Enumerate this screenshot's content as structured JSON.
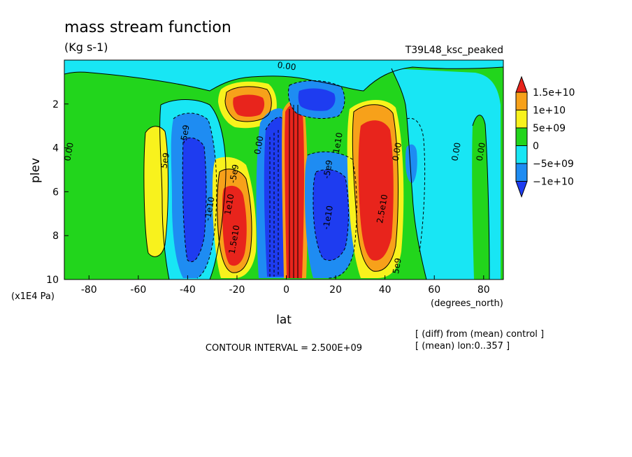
{
  "chart_data": {
    "type": "contour",
    "title": "mass stream function",
    "units": "(Kg s-1)",
    "run_label": "T39L48_ksc_peaked",
    "xlabel": "lat",
    "xunits": "(degrees_north)",
    "ylabel": "plev",
    "yunits": "(x1E4 Pa)",
    "xlim": [
      -90,
      88
    ],
    "ylim": [
      10,
      0
    ],
    "xticks": [
      "-80",
      "-60",
      "-40",
      "-20",
      "0",
      "20",
      "40",
      "60",
      "80"
    ],
    "xtick_values": [
      -80,
      -60,
      -40,
      -20,
      0,
      20,
      40,
      60,
      80
    ],
    "yticks": [
      "2",
      "4",
      "6",
      "8",
      "10"
    ],
    "ytick_values": [
      2,
      4,
      6,
      8,
      10
    ],
    "contour_interval": "CONTOUR INTERVAL = 2.500E+09",
    "notes": [
      "[ (diff) from (mean) control ]",
      "[ (mean) lon:0..357 ]"
    ],
    "legend": {
      "placement": "right",
      "levels": [
        {
          "label": "1.5e+10",
          "color": "#e8241c"
        },
        {
          "label": "1e+10",
          "color": "#f7a11a"
        },
        {
          "label": "5e+09",
          "color": "#f8f21d"
        },
        {
          "label": "0",
          "color": "#22d51c"
        },
        {
          "label": "−5e+09",
          "color": "#18e6f4"
        },
        {
          "label": "−1e+10",
          "color": "#1e8cf2"
        }
      ],
      "overflow_low_color": "#1e3cf0"
    },
    "contour_labels": [
      {
        "text": "0.00",
        "lat": 0,
        "plev": 0.4
      },
      {
        "text": "0.00",
        "lat": -87,
        "plev": 4.2
      },
      {
        "text": "0.00",
        "lat": 80,
        "plev": 4.2
      },
      {
        "text": "0.00",
        "lat": 70,
        "plev": 4.2
      },
      {
        "text": "0.00",
        "lat": 46,
        "plev": 4.2
      },
      {
        "text": "0.00",
        "lat": -10,
        "plev": 3.9
      },
      {
        "text": "5e9",
        "lat": -48,
        "plev": 4.6
      },
      {
        "text": "-5e9",
        "lat": -40,
        "plev": 3.4
      },
      {
        "text": "-5e9",
        "lat": -20,
        "plev": 5.2
      },
      {
        "text": "-5e9",
        "lat": 18,
        "plev": 5.0
      },
      {
        "text": "1e10",
        "lat": -22,
        "plev": 6.6
      },
      {
        "text": "1.5e10",
        "lat": -20,
        "plev": 8.2
      },
      {
        "text": "-1e10",
        "lat": -30,
        "plev": 6.8
      },
      {
        "text": "1e10",
        "lat": 22,
        "plev": 3.8
      },
      {
        "text": "-1e10",
        "lat": 18,
        "plev": 7.2
      },
      {
        "text": "2.5e10",
        "lat": 40,
        "plev": 6.8
      },
      {
        "text": "5e9",
        "lat": 46,
        "plev": 9.4
      }
    ],
    "filled_regions": [
      {
        "level": "0",
        "description": "background positive small"
      },
      {
        "level": "-5e+09",
        "description": "tropical/subtropical negative bands"
      }
    ]
  }
}
